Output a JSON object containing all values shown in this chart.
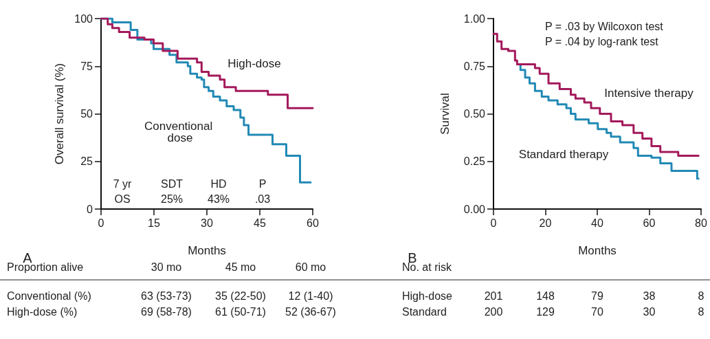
{
  "chart_data": [
    {
      "type": "step",
      "xlabel": "Months",
      "ylabel": "Overall survival (%)",
      "xlim": [
        0,
        60
      ],
      "xticks": [
        0,
        15,
        30,
        45,
        60
      ],
      "ylim": [
        0,
        100
      ],
      "yticks": [
        0,
        25,
        50,
        75,
        100
      ],
      "grid": false,
      "marker": "none",
      "line_style": "solid",
      "annotations": [
        "A",
        "7 yr",
        "SDT",
        "HD",
        "P",
        "OS",
        "25%",
        "43%",
        ".03",
        "Proportion alive",
        "30 mo",
        "45 mo",
        "60 mo",
        "Conventional (%)",
        "63 (53-73)",
        "35 (22-50)",
        "12 (1-40)",
        "High-dose (%)",
        "69 (58-78)",
        "61 (50-71)",
        "52 (36-67)"
      ],
      "series": [
        {
          "name": "Conventional dose",
          "color": "#2189b5",
          "x": [
            0,
            3.2,
            8.4,
            10.3,
            14.2,
            14.9,
            19.4,
            21.4,
            24.6,
            25.3,
            27.2,
            28.5,
            29.2,
            30.5,
            31.8,
            33.7,
            35.6,
            37.6,
            39.5,
            40.5,
            41.8,
            48.6,
            52.5,
            56.4,
            59.4
          ],
          "values": [
            100,
            98,
            94,
            89,
            87,
            84,
            81,
            77,
            75,
            71,
            69,
            68,
            64,
            62,
            59,
            57,
            54,
            52,
            48,
            44,
            39,
            34,
            28,
            14,
            14
          ]
        },
        {
          "name": "High-dose",
          "color": "#a3195b",
          "x": [
            0,
            1.9,
            3.2,
            5.1,
            8.1,
            12.3,
            14.9,
            17.5,
            21.7,
            27.2,
            28.5,
            30.5,
            33.7,
            35,
            38.2,
            47.3,
            52.9,
            60
          ],
          "values": [
            100,
            97,
            95,
            93,
            90,
            89,
            87,
            83,
            79,
            77,
            72,
            70,
            68,
            64,
            62,
            60,
            53,
            53
          ]
        }
      ]
    },
    {
      "type": "step",
      "xlabel": "Months",
      "ylabel": "Survival",
      "xlim": [
        0,
        80
      ],
      "xticks": [
        0,
        20,
        40,
        60,
        80
      ],
      "ylim": [
        0,
        1
      ],
      "yticks": [
        {
          "value": 0,
          "label": "0.00"
        },
        {
          "value": 0.25,
          "label": "0.25"
        },
        {
          "value": 0.5,
          "label": "0.50"
        },
        {
          "value": 0.75,
          "label": "0.75"
        },
        {
          "value": 1,
          "label": "1.00"
        }
      ],
      "grid": false,
      "marker": "none",
      "line_style": "solid",
      "annotations": [
        "B",
        "P = .03 by Wilcoxon test",
        "P = .04 by log-rank test",
        "No. at risk",
        "High-dose",
        "201",
        "148",
        "79",
        "38",
        "8",
        "Standard",
        "200",
        "129",
        "70",
        "30",
        "8"
      ],
      "series": [
        {
          "name": "Standard therapy",
          "color": "#2189b5",
          "x": [
            9.1,
            10.4,
            12.2,
            13.9,
            16,
            18.6,
            21.2,
            24.7,
            28.1,
            29.8,
            31.6,
            36.7,
            40.2,
            43.6,
            45.3,
            48.8,
            54,
            55.7,
            60.9,
            64.3,
            68.6,
            78.5,
            79
          ],
          "values": [
            0.76,
            0.73,
            0.69,
            0.66,
            0.62,
            0.59,
            0.57,
            0.55,
            0.53,
            0.5,
            0.47,
            0.45,
            0.42,
            0.4,
            0.38,
            0.35,
            0.32,
            0.28,
            0.27,
            0.24,
            0.2,
            0.16,
            0.16
          ]
        },
        {
          "name": "Intensive therapy",
          "color": "#a3195b",
          "x": [
            0,
            1.4,
            3.1,
            5.7,
            8.3,
            9.1,
            16,
            17.8,
            21.2,
            25.5,
            29.8,
            31.6,
            35,
            37.6,
            41,
            45.3,
            49.7,
            54,
            57.4,
            60.9,
            64.3,
            71.2,
            79
          ],
          "values": [
            0.92,
            0.88,
            0.84,
            0.83,
            0.78,
            0.76,
            0.74,
            0.71,
            0.66,
            0.63,
            0.6,
            0.58,
            0.56,
            0.53,
            0.5,
            0.46,
            0.44,
            0.4,
            0.37,
            0.33,
            0.3,
            0.28,
            0.28
          ]
        }
      ]
    }
  ]
}
